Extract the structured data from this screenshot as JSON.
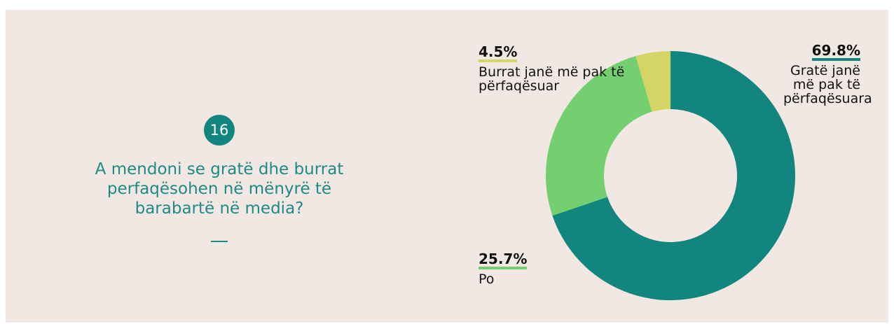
{
  "question_number": "16",
  "chart_data": {
    "type": "pie",
    "donut": true,
    "title": "A mendoni se gratë dhe burrat perfaqësohen në mënyrë të barabartë në media?",
    "categories": [
      "Gratë janë më pak të përfaqësuara",
      "Po",
      "Burrat janë më pak të përfaqësuar"
    ],
    "values": [
      69.8,
      25.7,
      4.5
    ],
    "value_labels": [
      "69.8%",
      "25.7%",
      "4.5%"
    ],
    "colors": [
      "#12857f",
      "#73cf6f",
      "#d5d566"
    ]
  }
}
